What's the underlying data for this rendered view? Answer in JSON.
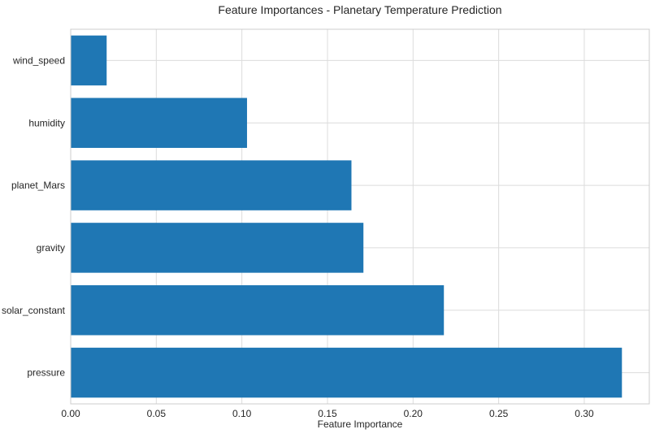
{
  "chart_data": {
    "type": "bar",
    "orientation": "horizontal",
    "title": "Feature Importances - Planetary Temperature Prediction",
    "xlabel": "Feature Importance",
    "ylabel": "",
    "categories": [
      "wind_speed",
      "humidity",
      "planet_Mars",
      "gravity",
      "solar_constant",
      "pressure"
    ],
    "values": [
      0.021,
      0.103,
      0.164,
      0.171,
      0.218,
      0.322
    ],
    "xlim": [
      0,
      0.338
    ],
    "xticks": [
      0.0,
      0.05,
      0.1,
      0.15,
      0.2,
      0.25,
      0.3
    ],
    "xtick_labels": [
      "0.00",
      "0.05",
      "0.10",
      "0.15",
      "0.20",
      "0.25",
      "0.30"
    ],
    "grid": true,
    "bar_color": "#1f77b4",
    "grid_color": "#dcdcdc"
  }
}
